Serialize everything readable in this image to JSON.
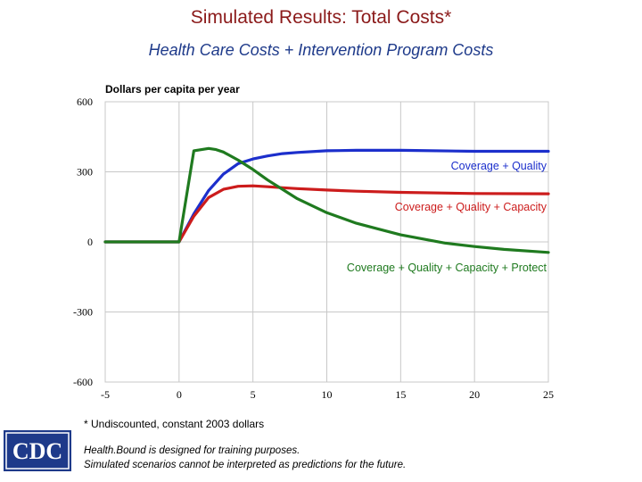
{
  "chart_data": {
    "type": "line",
    "title": "Simulated Results: Total Costs*",
    "subtitle": "Health Care Costs + Intervention Program Costs",
    "ylabel": "Dollars per capita per year",
    "xlim": [
      -5,
      25
    ],
    "ylim": [
      -600,
      600
    ],
    "x_ticks": [
      -5,
      0,
      5,
      10,
      15,
      20,
      25
    ],
    "y_ticks": [
      600,
      300,
      0,
      -300,
      -600
    ],
    "grid": true,
    "series": [
      {
        "name": "Coverage + Quality",
        "color": "#1c2fcc",
        "x": [
          -5,
          0,
          1,
          2,
          3,
          4,
          5,
          6,
          7,
          8,
          10,
          12,
          15,
          20,
          25
        ],
        "y": [
          0,
          0,
          120,
          220,
          290,
          335,
          355,
          368,
          378,
          383,
          390,
          392,
          392,
          388,
          388
        ]
      },
      {
        "name": "Coverage + Quality + Capacity",
        "color": "#cc1c1c",
        "x": [
          -5,
          0,
          1,
          2,
          3,
          4,
          5,
          6,
          7,
          8,
          10,
          12,
          15,
          20,
          25
        ],
        "y": [
          0,
          0,
          110,
          190,
          225,
          238,
          240,
          236,
          232,
          228,
          222,
          217,
          212,
          207,
          206
        ]
      },
      {
        "name": "Coverage + Quality + Capacity + Protect",
        "color": "#1f7a1f",
        "x": [
          -5,
          0,
          1,
          2,
          2.5,
          3,
          4,
          5,
          6,
          7,
          8,
          10,
          12,
          15,
          18,
          20,
          22,
          25
        ],
        "y": [
          0,
          0,
          390,
          400,
          395,
          385,
          350,
          310,
          265,
          225,
          185,
          125,
          80,
          30,
          -5,
          -20,
          -32,
          -45
        ]
      }
    ]
  },
  "footnote": "* Undiscounted, constant 2003 dollars",
  "disclaimer_line1": "Health.Bound is designed for training purposes.",
  "disclaimer_line2": "Simulated scenarios cannot be interpreted as predictions for the future.",
  "logo_text": "CDC",
  "logo_color": "#1e3a8a"
}
